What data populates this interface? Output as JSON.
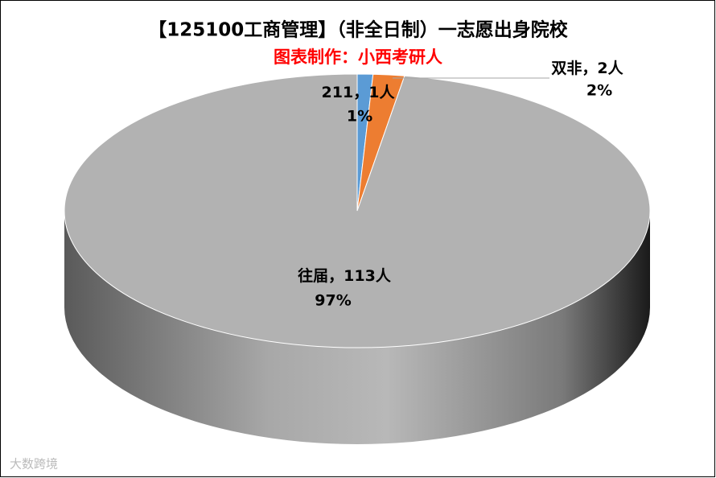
{
  "chart_data": {
    "type": "pie3d",
    "title": "【125100工商管理】（非全日制）一志愿出身院校",
    "subtitle": "图表制作：小西考研人",
    "categories": [
      "211",
      "双非",
      "往届"
    ],
    "values": [
      1,
      2,
      113
    ],
    "value_labels": [
      "1人",
      "2人",
      "113人"
    ],
    "label_separator": "，",
    "percents": [
      1,
      2,
      97
    ],
    "percent_labels": [
      "1%",
      "2%",
      "97%"
    ],
    "colors": [
      "#5b9bd5",
      "#ed7d31",
      "#b2b2b2"
    ],
    "watermark": "大数跨境"
  }
}
